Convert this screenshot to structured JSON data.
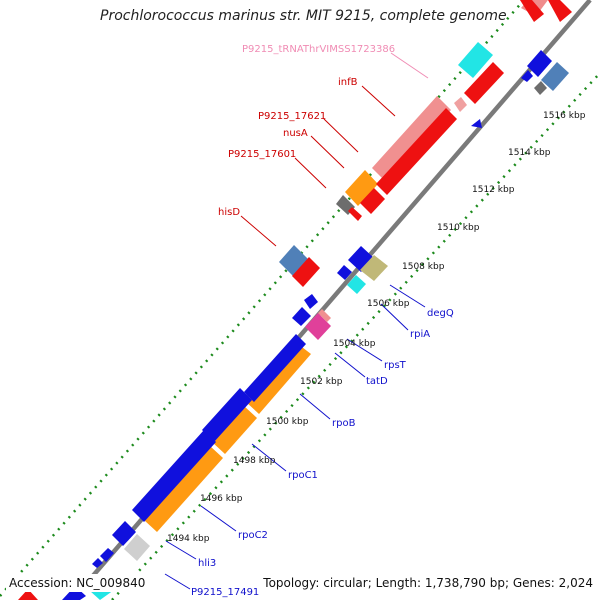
{
  "title": "Prochlorococcus marinus str. MIT 9215, complete genome",
  "footer": {
    "accession_label": "Accession:",
    "accession": "NC_009840",
    "topology_label": "Topology:",
    "topology": "circular",
    "length_label": "Length:",
    "length": "1,738,790 bp",
    "genes_label": "Genes:",
    "genes": "2,024"
  },
  "colors": {
    "backbone": "#7a7a7a",
    "tick_dots": "#1c8a1c",
    "forward_label": "#cc0000",
    "reverse_label": "#1010cc",
    "trna_label": "#f08cb4"
  },
  "ticks": [
    "1494 kbp",
    "1496 kbp",
    "1498 kbp",
    "1500 kbp",
    "1502 kbp",
    "1504 kbp",
    "1506 kbp",
    "1508 kbp",
    "1510 kbp",
    "1512 kbp",
    "1514 kbp",
    "1516 kbp"
  ],
  "gene_labels": {
    "trna": "P9215_tRNAThrVIMSS1723386",
    "infB": "infB",
    "p17621": "P9215_17621",
    "nusA": "nusA",
    "p17601": "P9215_17601",
    "hisD": "hisD",
    "degQ": "degQ",
    "rpiA": "rpiA",
    "rpsT": "rpsT",
    "tatD": "tatD",
    "rpoB": "rpoB",
    "rpoC1": "rpoC1",
    "rpoC2": "rpoC2",
    "hli3": "hli3",
    "p17491": "P9215_17491"
  }
}
